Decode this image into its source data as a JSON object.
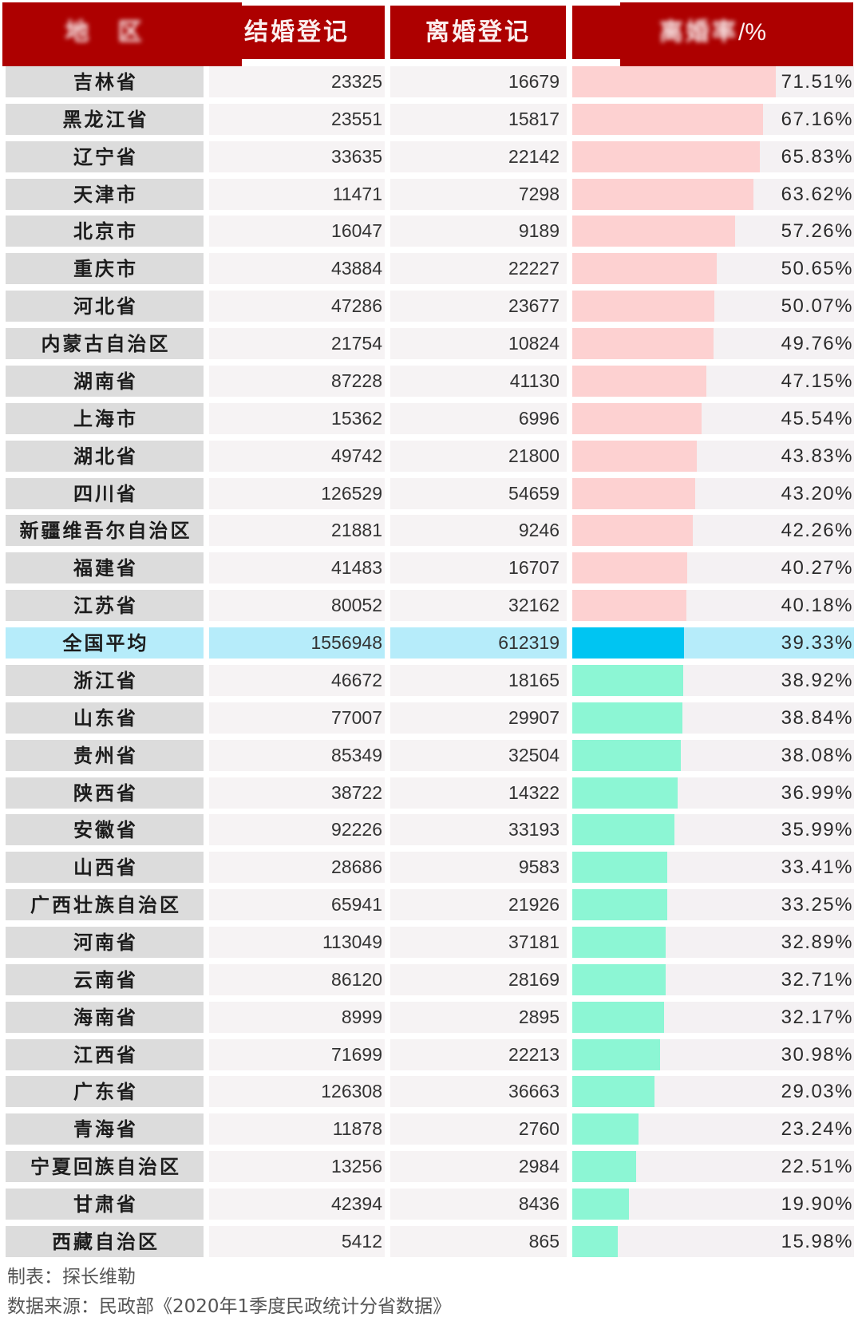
{
  "header": {
    "region": "地　区",
    "marriage": "结婚登记",
    "divorce": "离婚登记",
    "rate_obscured": "离婚率",
    "rate_unit": "/%"
  },
  "colors": {
    "header_red": "#ad0000",
    "above_bar": "#fdd1d1",
    "avg_bar": "#00c5f2",
    "below_bar": "#8cf6d4",
    "avg_row_bg": "#b6ecfa",
    "region_cell_bg": "#dcdcdc"
  },
  "table": {
    "rows": [
      {
        "region": "吉林省",
        "marriage": "23325",
        "divorce": "16679",
        "rate": "71.51%",
        "type": "above"
      },
      {
        "region": "黑龙江省",
        "marriage": "23551",
        "divorce": "15817",
        "rate": "67.16%",
        "type": "above"
      },
      {
        "region": "辽宁省",
        "marriage": "33635",
        "divorce": "22142",
        "rate": "65.83%",
        "type": "above"
      },
      {
        "region": "天津市",
        "marriage": "11471",
        "divorce": "7298",
        "rate": "63.62%",
        "type": "above"
      },
      {
        "region": "北京市",
        "marriage": "16047",
        "divorce": "9189",
        "rate": "57.26%",
        "type": "above"
      },
      {
        "region": "重庆市",
        "marriage": "43884",
        "divorce": "22227",
        "rate": "50.65%",
        "type": "above"
      },
      {
        "region": "河北省",
        "marriage": "47286",
        "divorce": "23677",
        "rate": "50.07%",
        "type": "above"
      },
      {
        "region": "内蒙古自治区",
        "marriage": "21754",
        "divorce": "10824",
        "rate": "49.76%",
        "type": "above"
      },
      {
        "region": "湖南省",
        "marriage": "87228",
        "divorce": "41130",
        "rate": "47.15%",
        "type": "above"
      },
      {
        "region": "上海市",
        "marriage": "15362",
        "divorce": "6996",
        "rate": "45.54%",
        "type": "above"
      },
      {
        "region": "湖北省",
        "marriage": "49742",
        "divorce": "21800",
        "rate": "43.83%",
        "type": "above"
      },
      {
        "region": "四川省",
        "marriage": "126529",
        "divorce": "54659",
        "rate": "43.20%",
        "type": "above"
      },
      {
        "region": "新疆维吾尔自治区",
        "marriage": "21881",
        "divorce": "9246",
        "rate": "42.26%",
        "type": "above"
      },
      {
        "region": "福建省",
        "marriage": "41483",
        "divorce": "16707",
        "rate": "40.27%",
        "type": "above"
      },
      {
        "region": "江苏省",
        "marriage": "80052",
        "divorce": "32162",
        "rate": "40.18%",
        "type": "above"
      },
      {
        "region": "全国平均",
        "marriage": "1556948",
        "divorce": "612319",
        "rate": "39.33%",
        "type": "avg"
      },
      {
        "region": "浙江省",
        "marriage": "46672",
        "divorce": "18165",
        "rate": "38.92%",
        "type": "below"
      },
      {
        "region": "山东省",
        "marriage": "77007",
        "divorce": "29907",
        "rate": "38.84%",
        "type": "below"
      },
      {
        "region": "贵州省",
        "marriage": "85349",
        "divorce": "32504",
        "rate": "38.08%",
        "type": "below"
      },
      {
        "region": "陕西省",
        "marriage": "38722",
        "divorce": "14322",
        "rate": "36.99%",
        "type": "below"
      },
      {
        "region": "安徽省",
        "marriage": "92226",
        "divorce": "33193",
        "rate": "35.99%",
        "type": "below"
      },
      {
        "region": "山西省",
        "marriage": "28686",
        "divorce": "9583",
        "rate": "33.41%",
        "type": "below"
      },
      {
        "region": "广西壮族自治区",
        "marriage": "65941",
        "divorce": "21926",
        "rate": "33.25%",
        "type": "below"
      },
      {
        "region": "河南省",
        "marriage": "113049",
        "divorce": "37181",
        "rate": "32.89%",
        "type": "below"
      },
      {
        "region": "云南省",
        "marriage": "86120",
        "divorce": "28169",
        "rate": "32.71%",
        "type": "below"
      },
      {
        "region": "海南省",
        "marriage": "8999",
        "divorce": "2895",
        "rate": "32.17%",
        "type": "below"
      },
      {
        "region": "江西省",
        "marriage": "71699",
        "divorce": "22213",
        "rate": "30.98%",
        "type": "below"
      },
      {
        "region": "广东省",
        "marriage": "126308",
        "divorce": "36663",
        "rate": "29.03%",
        "type": "below"
      },
      {
        "region": "青海省",
        "marriage": "11878",
        "divorce": "2760",
        "rate": "23.24%",
        "type": "below"
      },
      {
        "region": "宁夏回族自治区",
        "marriage": "13256",
        "divorce": "2984",
        "rate": "22.51%",
        "type": "below"
      },
      {
        "region": "甘肃省",
        "marriage": "42394",
        "divorce": "8436",
        "rate": "19.90%",
        "type": "below"
      },
      {
        "region": "西藏自治区",
        "marriage": "5412",
        "divorce": "865",
        "rate": "15.98%",
        "type": "below"
      }
    ]
  },
  "footer": {
    "author": "制表：探长维勒",
    "source": "数据来源：民政部《2020年1季度民政统计分省数据》"
  },
  "chart_data": {
    "type": "bar",
    "orientation": "horizontal",
    "title": "",
    "columns": [
      "地区",
      "结婚登记",
      "离婚登记",
      "离婚率/%"
    ],
    "categories": [
      "吉林省",
      "黑龙江省",
      "辽宁省",
      "天津市",
      "北京市",
      "重庆市",
      "河北省",
      "内蒙古自治区",
      "湖南省",
      "上海市",
      "湖北省",
      "四川省",
      "新疆维吾尔自治区",
      "福建省",
      "江苏省",
      "全国平均",
      "浙江省",
      "山东省",
      "贵州省",
      "陕西省",
      "安徽省",
      "山西省",
      "广西壮族自治区",
      "河南省",
      "云南省",
      "海南省",
      "江西省",
      "广东省",
      "青海省",
      "宁夏回族自治区",
      "甘肃省",
      "西藏自治区"
    ],
    "series": [
      {
        "name": "结婚登记",
        "values": [
          23325,
          23551,
          33635,
          11471,
          16047,
          43884,
          47286,
          21754,
          87228,
          15362,
          49742,
          126529,
          21881,
          41483,
          80052,
          1556948,
          46672,
          77007,
          85349,
          38722,
          92226,
          28686,
          65941,
          113049,
          86120,
          8999,
          71699,
          126308,
          11878,
          13256,
          42394,
          5412
        ]
      },
      {
        "name": "离婚登记",
        "values": [
          16679,
          15817,
          22142,
          7298,
          9189,
          22227,
          23677,
          10824,
          41130,
          6996,
          21800,
          54659,
          9246,
          16707,
          32162,
          612319,
          18165,
          29907,
          32504,
          14322,
          33193,
          9583,
          21926,
          37181,
          28169,
          2895,
          22213,
          36663,
          2760,
          2984,
          8436,
          865
        ]
      },
      {
        "name": "离婚率/%",
        "values": [
          71.51,
          67.16,
          65.83,
          63.62,
          57.26,
          50.65,
          50.07,
          49.76,
          47.15,
          45.54,
          43.83,
          43.2,
          42.26,
          40.27,
          40.18,
          39.33,
          38.92,
          38.84,
          38.08,
          36.99,
          35.99,
          33.41,
          33.25,
          32.89,
          32.71,
          32.17,
          30.98,
          29.03,
          23.24,
          22.51,
          19.9,
          15.98
        ]
      }
    ],
    "highlight_category": "全国平均",
    "bar_series": "离婚率/%",
    "legend": "none",
    "grid": false,
    "xlim": [
      0,
      100
    ]
  }
}
